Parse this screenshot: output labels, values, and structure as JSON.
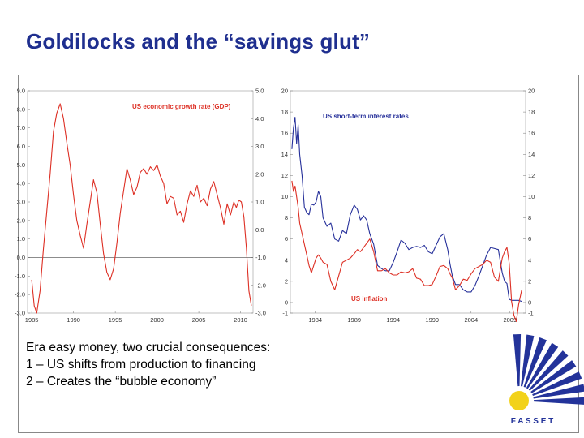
{
  "title": "Goldilocks and the “savings glut”",
  "body": {
    "heading": "Era easy money, two crucial consequences:",
    "lines": [
      "1 – US shifts from production to financing",
      "2 – Creates the “bubble economy”"
    ]
  },
  "logo": {
    "text": "F A S S E T",
    "colors": {
      "blue": "#23339a",
      "yellow": "#f2d21a"
    }
  },
  "colors": {
    "red": "#dd2f24",
    "blue": "#26309a",
    "title": "#1f2f8f"
  },
  "chart_data": [
    {
      "type": "line",
      "series": [
        {
          "name": "US economic growth rate (GDP)",
          "color": "#dd2f24",
          "x": [
            1985.0,
            1985.3,
            1985.6,
            1986.0,
            1986.4,
            1986.8,
            1987.2,
            1987.6,
            1988.0,
            1988.4,
            1988.8,
            1989.2,
            1989.6,
            1990.0,
            1990.4,
            1990.8,
            1991.2,
            1991.6,
            1992.0,
            1992.4,
            1992.8,
            1993.2,
            1993.6,
            1994.0,
            1994.4,
            1994.8,
            1995.2,
            1995.6,
            1996.0,
            1996.4,
            1996.8,
            1997.2,
            1997.6,
            1998.0,
            1998.4,
            1998.8,
            1999.2,
            1999.6,
            2000.0,
            2000.4,
            2000.8,
            2001.2,
            2001.6,
            2002.0,
            2002.4,
            2002.8,
            2003.2,
            2003.6,
            2004.0,
            2004.4,
            2004.8,
            2005.2,
            2005.6,
            2006.0,
            2006.4,
            2006.8,
            2007.2,
            2007.6,
            2008.0,
            2008.4,
            2008.8,
            2009.2,
            2009.5,
            2009.8,
            2010.1,
            2010.4,
            2010.7,
            2011.0,
            2011.3
          ],
          "y": [
            -1.2,
            -2.6,
            -3.0,
            -1.8,
            0.5,
            2.5,
            4.5,
            6.8,
            7.8,
            8.3,
            7.5,
            6.2,
            5.0,
            3.4,
            2.0,
            1.2,
            0.5,
            1.8,
            3.0,
            4.2,
            3.5,
            1.8,
            0.2,
            -0.8,
            -1.2,
            -0.6,
            0.8,
            2.4,
            3.6,
            4.8,
            4.2,
            3.4,
            3.8,
            4.6,
            4.8,
            4.5,
            4.9,
            4.7,
            5.0,
            4.4,
            4.0,
            2.9,
            3.3,
            3.2,
            2.3,
            2.5,
            1.9,
            2.9,
            3.6,
            3.3,
            3.9,
            3.0,
            3.2,
            2.8,
            3.7,
            4.1,
            3.4,
            2.7,
            1.8,
            2.9,
            2.3,
            3.0,
            2.7,
            3.1,
            3.0,
            2.2,
            0.5,
            -1.8,
            -2.6
          ],
          "y_axis": "left"
        }
      ],
      "left_axis": {
        "ylim": [
          -3.0,
          9.0
        ],
        "ticks": [
          "9.0",
          "8.0",
          "7.0",
          "6.0",
          "5.0",
          "4.0",
          "3.0",
          "2.0",
          "1.0",
          "0.0",
          "-1.0",
          "-2.0",
          "-3.0"
        ]
      },
      "right_axis": {
        "ylim": [
          -3.0,
          5.0
        ],
        "ticks": [
          "5.0",
          "4.0",
          "3.0",
          "2.0",
          "1.0",
          "0.0",
          "-1.0",
          "-2.0",
          "-3.0"
        ]
      },
      "x_ticks": [
        "1985",
        "1990",
        "1995",
        "2000",
        "2005",
        "2010"
      ],
      "xlim": [
        1984.5,
        2011.5
      ],
      "zero_line": true
    },
    {
      "type": "line",
      "series": [
        {
          "name": "US short-term interest rates",
          "color": "#26309a",
          "x": [
            1981.0,
            1981.2,
            1981.4,
            1981.6,
            1981.8,
            1982.0,
            1982.3,
            1982.6,
            1982.9,
            1983.2,
            1983.5,
            1983.8,
            1984.1,
            1984.4,
            1984.7,
            1985.0,
            1985.5,
            1986.0,
            1986.5,
            1987.0,
            1987.5,
            1988.0,
            1988.5,
            1989.0,
            1989.4,
            1989.8,
            1990.2,
            1990.6,
            1991.0,
            1991.5,
            1992.0,
            1992.5,
            1993.0,
            1993.5,
            1994.0,
            1994.5,
            1995.0,
            1995.5,
            1996.0,
            1996.5,
            1997.0,
            1997.5,
            1998.0,
            1998.5,
            1999.0,
            1999.5,
            2000.0,
            2000.5,
            2001.0,
            2001.3,
            2001.6,
            2002.0,
            2002.5,
            2003.0,
            2003.5,
            2004.0,
            2004.5,
            2005.0,
            2005.5,
            2006.0,
            2006.5,
            2007.0,
            2007.5,
            2008.0,
            2008.3,
            2008.6,
            2008.9,
            2009.2,
            2009.5,
            2009.8,
            2010.1,
            2010.5
          ],
          "y": [
            14.5,
            16.5,
            17.5,
            15.0,
            16.8,
            14.0,
            12.0,
            9.0,
            8.5,
            8.3,
            9.3,
            9.2,
            9.5,
            10.5,
            10.0,
            8.0,
            7.2,
            7.5,
            6.0,
            5.8,
            6.8,
            6.5,
            8.3,
            9.2,
            8.8,
            7.8,
            8.2,
            7.8,
            6.5,
            5.5,
            3.5,
            3.2,
            3.0,
            3.0,
            3.8,
            4.8,
            5.9,
            5.6,
            5.0,
            5.2,
            5.3,
            5.2,
            5.4,
            4.8,
            4.6,
            5.4,
            6.2,
            6.5,
            5.0,
            3.6,
            2.5,
            1.7,
            1.7,
            1.2,
            1.0,
            1.0,
            1.6,
            2.5,
            3.5,
            4.5,
            5.2,
            5.1,
            5.0,
            2.8,
            2.0,
            1.8,
            0.3,
            0.2,
            0.2,
            0.2,
            0.2,
            0.1
          ],
          "y_axis": "left"
        },
        {
          "name": "US inflation",
          "color": "#dd2f24",
          "x": [
            1981.0,
            1981.2,
            1981.4,
            1981.6,
            1981.8,
            1982.0,
            1982.3,
            1982.6,
            1982.9,
            1983.2,
            1983.5,
            1983.8,
            1984.1,
            1984.4,
            1984.7,
            1985.0,
            1985.5,
            1986.0,
            1986.5,
            1987.0,
            1987.5,
            1988.0,
            1988.5,
            1989.0,
            1989.4,
            1989.8,
            1990.2,
            1990.6,
            1991.0,
            1991.5,
            1992.0,
            1992.5,
            1993.0,
            1993.5,
            1994.0,
            1994.5,
            1995.0,
            1995.5,
            1996.0,
            1996.5,
            1997.0,
            1997.5,
            1998.0,
            1998.5,
            1999.0,
            1999.5,
            2000.0,
            2000.5,
            2001.0,
            2001.3,
            2001.6,
            2002.0,
            2002.5,
            2003.0,
            2003.5,
            2004.0,
            2004.5,
            2005.0,
            2005.5,
            2006.0,
            2006.5,
            2007.0,
            2007.5,
            2008.0,
            2008.3,
            2008.6,
            2008.9,
            2009.2,
            2009.5,
            2009.8,
            2010.1,
            2010.5
          ],
          "y": [
            11.5,
            10.5,
            11.0,
            10.0,
            9.0,
            7.5,
            6.5,
            5.5,
            4.5,
            3.5,
            2.8,
            3.5,
            4.2,
            4.5,
            4.2,
            3.8,
            3.6,
            2.0,
            1.2,
            2.5,
            3.8,
            4.0,
            4.2,
            4.6,
            5.0,
            4.8,
            5.2,
            5.6,
            6.0,
            4.8,
            3.0,
            3.0,
            3.2,
            2.8,
            2.6,
            2.6,
            2.9,
            2.8,
            2.9,
            3.2,
            2.3,
            2.2,
            1.6,
            1.6,
            1.7,
            2.5,
            3.4,
            3.5,
            3.2,
            2.7,
            2.3,
            1.2,
            1.6,
            2.2,
            2.1,
            2.7,
            3.2,
            3.4,
            3.6,
            4.0,
            3.8,
            2.4,
            2.0,
            4.2,
            4.8,
            5.2,
            3.7,
            0.1,
            -1.2,
            -1.8,
            -0.2,
            1.2
          ],
          "y_axis": "left"
        }
      ],
      "left_axis": {
        "ylim": [
          -1,
          20
        ],
        "ticks": [
          "20",
          "18",
          "16",
          "14",
          "12",
          "10",
          "8",
          "6",
          "4",
          "2",
          "0",
          "-1"
        ]
      },
      "right_axis": {
        "ylim": [
          -1,
          20
        ],
        "ticks": [
          "20",
          "18",
          "16",
          "14",
          "12",
          "10",
          "8",
          "6",
          "4",
          "2",
          "0",
          "-1"
        ]
      },
      "x_ticks": [
        "1984",
        "1989",
        "1994",
        "1999",
        "2004",
        "2009"
      ],
      "xlim": [
        1980.8,
        2011.0
      ],
      "zero_line": false
    }
  ]
}
